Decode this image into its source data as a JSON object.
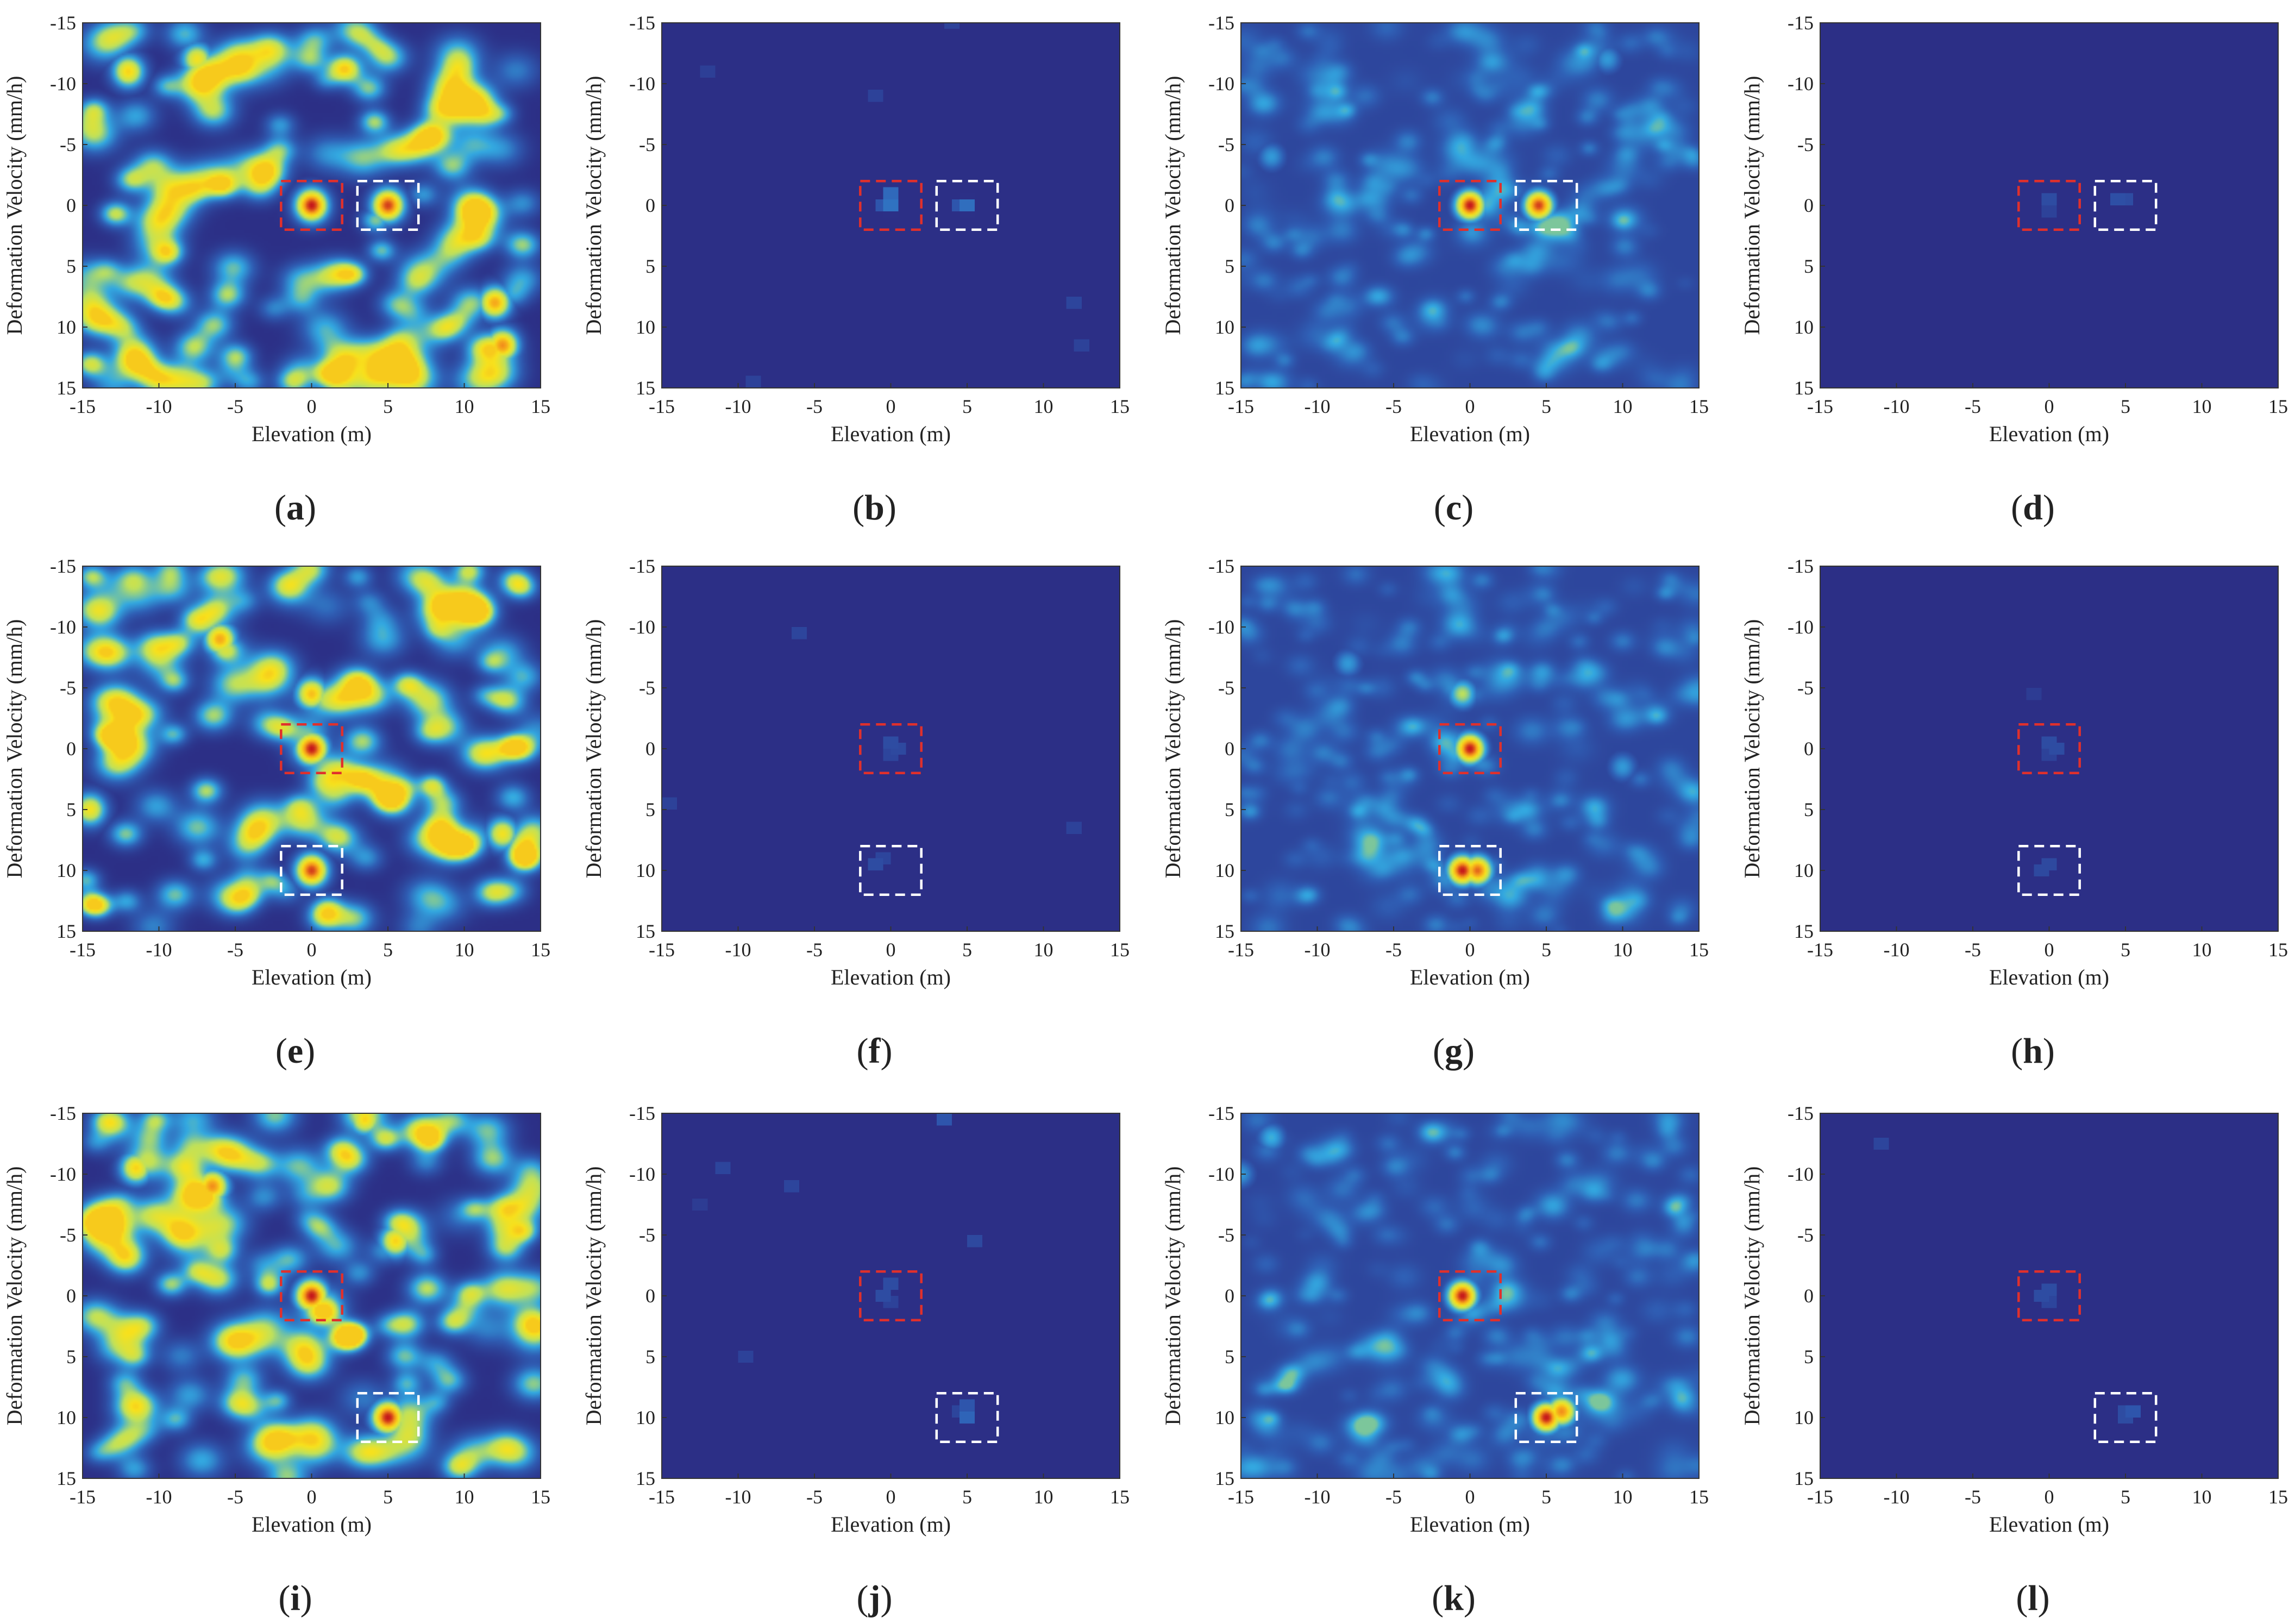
{
  "colors": {
    "background_deep_blue": "#2c2f86",
    "red_box": "#e0302c",
    "white_box": "#ffffff",
    "colormap": [
      "#2c2f86",
      "#2f5fb5",
      "#33a9e1",
      "#bfe15b",
      "#f8e11c",
      "#f59a1b",
      "#c4141b"
    ]
  },
  "chart_data": [
    {
      "panel": "a",
      "type": "heatmap",
      "style": "dense",
      "xlabel": "Elevation (m)",
      "ylabel": "Deformation Velocity (mm/h)",
      "xlim": [
        -15,
        15
      ],
      "ylim": [
        -15,
        15
      ],
      "y_reversed": true,
      "xticks": [
        -15,
        -10,
        -5,
        0,
        5,
        10,
        15
      ],
      "yticks": [
        -15,
        -10,
        -5,
        0,
        5,
        10,
        15
      ],
      "peaks": [
        {
          "x": 0,
          "y": 0,
          "amp": 1.0
        },
        {
          "x": 5,
          "y": 0,
          "amp": 0.95
        },
        {
          "x": 12,
          "y": 8,
          "amp": 0.8
        },
        {
          "x": 12.5,
          "y": 11.5,
          "amp": 0.85
        },
        {
          "x": -12,
          "y": -11,
          "amp": 0.7
        },
        {
          "x": -7.5,
          "y": -12,
          "amp": 0.65
        }
      ],
      "boxes": [
        {
          "color": "red",
          "x": [
            -2,
            2
          ],
          "y": [
            -2,
            2
          ]
        },
        {
          "color": "white",
          "x": [
            3,
            7
          ],
          "y": [
            -2,
            2
          ]
        }
      ]
    },
    {
      "panel": "b",
      "type": "heatmap",
      "style": "sparse",
      "xlabel": "Elevation (m)",
      "ylabel": "Deformation Velocity (mm/h)",
      "xlim": [
        -15,
        15
      ],
      "ylim": [
        -15,
        15
      ],
      "y_reversed": true,
      "xticks": [
        -15,
        -10,
        -5,
        0,
        5,
        10,
        15
      ],
      "yticks": [
        -15,
        -10,
        -5,
        0,
        5,
        10,
        15
      ],
      "peaks": [
        {
          "x": 0,
          "y": 0,
          "amp": 0.95
        },
        {
          "x": 0,
          "y": -1,
          "amp": 0.85
        },
        {
          "x": -0.5,
          "y": 0,
          "amp": 0.6
        },
        {
          "x": 5,
          "y": 0,
          "amp": 0.9
        },
        {
          "x": 4.5,
          "y": 0,
          "amp": 0.6
        },
        {
          "x": 4,
          "y": -15,
          "amp": 0.3
        },
        {
          "x": -1,
          "y": -9,
          "amp": 0.3
        },
        {
          "x": -12,
          "y": -11,
          "amp": 0.25
        },
        {
          "x": 12,
          "y": 8,
          "amp": 0.35
        },
        {
          "x": 12.5,
          "y": 11.5,
          "amp": 0.3
        },
        {
          "x": -9,
          "y": 14.5,
          "amp": 0.3
        }
      ],
      "boxes": [
        {
          "color": "red",
          "x": [
            -2,
            2
          ],
          "y": [
            -2,
            2
          ]
        },
        {
          "color": "white",
          "x": [
            3,
            7
          ],
          "y": [
            -2,
            2
          ]
        }
      ]
    },
    {
      "panel": "c",
      "type": "heatmap",
      "style": "smooth",
      "xlabel": "Elevation (m)",
      "ylabel": "Deformation Velocity (mm/h)",
      "xlim": [
        -15,
        15
      ],
      "ylim": [
        -15,
        15
      ],
      "y_reversed": true,
      "xticks": [
        -15,
        -10,
        -5,
        0,
        5,
        10,
        15
      ],
      "yticks": [
        -15,
        -10,
        -5,
        0,
        5,
        10,
        15
      ],
      "peaks": [
        {
          "x": 0,
          "y": 0,
          "amp": 1.0
        },
        {
          "x": 4.5,
          "y": 0,
          "amp": 0.95
        },
        {
          "x": -13,
          "y": -4,
          "amp": 0.3
        },
        {
          "x": 9,
          "y": -12,
          "amp": 0.3
        }
      ],
      "boxes": [
        {
          "color": "red",
          "x": [
            -2,
            2
          ],
          "y": [
            -2,
            2
          ]
        },
        {
          "color": "white",
          "x": [
            3,
            7
          ],
          "y": [
            -2,
            2
          ]
        }
      ]
    },
    {
      "panel": "d",
      "type": "heatmap",
      "style": "sparse",
      "xlabel": "Elevation (m)",
      "ylabel": "Deformation Velocity (mm/h)",
      "xlim": [
        -15,
        15
      ],
      "ylim": [
        -15,
        15
      ],
      "y_reversed": true,
      "xticks": [
        -15,
        -10,
        -5,
        0,
        5,
        10,
        15
      ],
      "yticks": [
        -15,
        -10,
        -5,
        0,
        5,
        10,
        15
      ],
      "peaks": [
        {
          "x": 0,
          "y": -0.5,
          "amp": 0.45
        },
        {
          "x": 0,
          "y": 0.5,
          "amp": 0.3
        },
        {
          "x": 4.5,
          "y": -0.5,
          "amp": 0.5
        },
        {
          "x": 5,
          "y": -0.5,
          "amp": 0.45
        }
      ],
      "boxes": [
        {
          "color": "red",
          "x": [
            -2,
            2
          ],
          "y": [
            -2,
            2
          ]
        },
        {
          "color": "white",
          "x": [
            3,
            7
          ],
          "y": [
            -2,
            2
          ]
        }
      ]
    },
    {
      "panel": "e",
      "type": "heatmap",
      "style": "dense",
      "xlabel": "Elevation (m)",
      "ylabel": "Deformation Velocity (mm/h)",
      "xlim": [
        -15,
        15
      ],
      "ylim": [
        -15,
        15
      ],
      "y_reversed": true,
      "xticks": [
        -15,
        -10,
        -5,
        0,
        5,
        10,
        15
      ],
      "yticks": [
        -15,
        -10,
        -5,
        0,
        5,
        10,
        15
      ],
      "peaks": [
        {
          "x": 0,
          "y": 0,
          "amp": 1.0
        },
        {
          "x": 0,
          "y": 10,
          "amp": 0.95
        },
        {
          "x": -6,
          "y": -9,
          "amp": 0.8
        },
        {
          "x": 0,
          "y": -4.5,
          "amp": 0.75
        },
        {
          "x": -14.5,
          "y": 5,
          "amp": 0.65
        },
        {
          "x": 12.5,
          "y": 7,
          "amp": 0.65
        }
      ],
      "boxes": [
        {
          "color": "red",
          "x": [
            -2,
            2
          ],
          "y": [
            -2,
            2
          ]
        },
        {
          "color": "white",
          "x": [
            -2,
            2
          ],
          "y": [
            8,
            12
          ]
        }
      ]
    },
    {
      "panel": "f",
      "type": "heatmap",
      "style": "sparse",
      "xlabel": "Elevation (m)",
      "ylabel": "Deformation Velocity (mm/h)",
      "xlim": [
        -15,
        15
      ],
      "ylim": [
        -15,
        15
      ],
      "y_reversed": true,
      "xticks": [
        -15,
        -10,
        -5,
        0,
        5,
        10,
        15
      ],
      "yticks": [
        -15,
        -10,
        -5,
        0,
        5,
        10,
        15
      ],
      "peaks": [
        {
          "x": 0,
          "y": -0.5,
          "amp": 0.45
        },
        {
          "x": 0.5,
          "y": 0,
          "amp": 0.4
        },
        {
          "x": 0,
          "y": 0.5,
          "amp": 0.35
        },
        {
          "x": -1,
          "y": 9.5,
          "amp": 0.45
        },
        {
          "x": -0.5,
          "y": 9,
          "amp": 0.35
        },
        {
          "x": -6,
          "y": -9.5,
          "amp": 0.35
        },
        {
          "x": -14.5,
          "y": 4.5,
          "amp": 0.3
        },
        {
          "x": 12,
          "y": 6.5,
          "amp": 0.3
        }
      ],
      "boxes": [
        {
          "color": "red",
          "x": [
            -2,
            2
          ],
          "y": [
            -2,
            2
          ]
        },
        {
          "color": "white",
          "x": [
            -2,
            2
          ],
          "y": [
            8,
            12
          ]
        }
      ]
    },
    {
      "panel": "g",
      "type": "heatmap",
      "style": "smooth",
      "xlabel": "Elevation (m)",
      "ylabel": "Deformation Velocity (mm/h)",
      "xlim": [
        -15,
        15
      ],
      "ylim": [
        -15,
        15
      ],
      "y_reversed": true,
      "xticks": [
        -15,
        -10,
        -5,
        0,
        5,
        10,
        15
      ],
      "yticks": [
        -15,
        -10,
        -5,
        0,
        5,
        10,
        15
      ],
      "peaks": [
        {
          "x": 0,
          "y": 0,
          "amp": 1.0
        },
        {
          "x": -0.5,
          "y": 10,
          "amp": 1.0
        },
        {
          "x": 0.5,
          "y": 10,
          "amp": 0.9
        },
        {
          "x": -0.5,
          "y": -4.5,
          "amp": 0.5
        },
        {
          "x": -8,
          "y": -7,
          "amp": 0.3
        },
        {
          "x": 10,
          "y": 1.5,
          "amp": 0.3
        }
      ],
      "boxes": [
        {
          "color": "red",
          "x": [
            -2,
            2
          ],
          "y": [
            -2,
            2
          ]
        },
        {
          "color": "white",
          "x": [
            -2,
            2
          ],
          "y": [
            8,
            12
          ]
        }
      ]
    },
    {
      "panel": "h",
      "type": "heatmap",
      "style": "sparse",
      "xlabel": "Elevation (m)",
      "ylabel": "Deformation Velocity (mm/h)",
      "xlim": [
        -15,
        15
      ],
      "ylim": [
        -15,
        15
      ],
      "y_reversed": true,
      "xticks": [
        -15,
        -10,
        -5,
        0,
        5,
        10,
        15
      ],
      "yticks": [
        -15,
        -10,
        -5,
        0,
        5,
        10,
        15
      ],
      "peaks": [
        {
          "x": 0,
          "y": -0.5,
          "amp": 0.45
        },
        {
          "x": 0.5,
          "y": 0,
          "amp": 0.45
        },
        {
          "x": 0,
          "y": 0.5,
          "amp": 0.3
        },
        {
          "x": 0,
          "y": 9.5,
          "amp": 0.4
        },
        {
          "x": -0.5,
          "y": 10,
          "amp": 0.4
        },
        {
          "x": -1,
          "y": -4.5,
          "amp": 0.2
        }
      ],
      "boxes": [
        {
          "color": "red",
          "x": [
            -2,
            2
          ],
          "y": [
            -2,
            2
          ]
        },
        {
          "color": "white",
          "x": [
            -2,
            2
          ],
          "y": [
            8,
            12
          ]
        }
      ]
    },
    {
      "panel": "i",
      "type": "heatmap",
      "style": "dense",
      "xlabel": "Elevation (m)",
      "ylabel": "Deformation Velocity (mm/h)",
      "xlim": [
        -15,
        15
      ],
      "ylim": [
        -15,
        15
      ],
      "y_reversed": true,
      "xticks": [
        -15,
        -10,
        -5,
        0,
        5,
        10,
        15
      ],
      "yticks": [
        -15,
        -10,
        -5,
        0,
        5,
        10,
        15
      ],
      "peaks": [
        {
          "x": 0,
          "y": 0,
          "amp": 1.0
        },
        {
          "x": 5,
          "y": 10,
          "amp": 1.0
        },
        {
          "x": -6.5,
          "y": -9,
          "amp": 0.85
        },
        {
          "x": -11.5,
          "y": -10.5,
          "amp": 0.7
        },
        {
          "x": 5.5,
          "y": -4.5,
          "amp": 0.7
        },
        {
          "x": 3.5,
          "y": -14.5,
          "amp": 0.7
        }
      ],
      "boxes": [
        {
          "color": "red",
          "x": [
            -2,
            2
          ],
          "y": [
            -2,
            2
          ]
        },
        {
          "color": "white",
          "x": [
            3,
            7
          ],
          "y": [
            8,
            12
          ]
        }
      ]
    },
    {
      "panel": "j",
      "type": "heatmap",
      "style": "sparse",
      "xlabel": "Elevation (m)",
      "ylabel": "Deformation Velocity (mm/h)",
      "xlim": [
        -15,
        15
      ],
      "ylim": [
        -15,
        15
      ],
      "y_reversed": true,
      "xticks": [
        -15,
        -10,
        -5,
        0,
        5,
        10,
        15
      ],
      "yticks": [
        -15,
        -10,
        -5,
        0,
        5,
        10,
        15
      ],
      "peaks": [
        {
          "x": 0,
          "y": -1,
          "amp": 0.45
        },
        {
          "x": -0.5,
          "y": 0,
          "amp": 0.45
        },
        {
          "x": 0,
          "y": 0.5,
          "amp": 0.3
        },
        {
          "x": 5,
          "y": 9,
          "amp": 0.6
        },
        {
          "x": 5,
          "y": 10,
          "amp": 0.8
        },
        {
          "x": 4.5,
          "y": 9.5,
          "amp": 0.35
        },
        {
          "x": 3.5,
          "y": -14.5,
          "amp": 0.6
        },
        {
          "x": -11,
          "y": -10.5,
          "amp": 0.35
        },
        {
          "x": -6.5,
          "y": -9,
          "amp": 0.35
        },
        {
          "x": 5.5,
          "y": -4.5,
          "amp": 0.4
        },
        {
          "x": -9.5,
          "y": 5,
          "amp": 0.3
        },
        {
          "x": -12.5,
          "y": -7.5,
          "amp": 0.2
        }
      ],
      "boxes": [
        {
          "color": "red",
          "x": [
            -2,
            2
          ],
          "y": [
            -2,
            2
          ]
        },
        {
          "color": "white",
          "x": [
            3,
            7
          ],
          "y": [
            8,
            12
          ]
        }
      ]
    },
    {
      "panel": "k",
      "type": "heatmap",
      "style": "smooth",
      "xlabel": "Elevation (m)",
      "ylabel": "Deformation Velocity (mm/h)",
      "xlim": [
        -15,
        15
      ],
      "ylim": [
        -15,
        15
      ],
      "y_reversed": true,
      "xticks": [
        -15,
        -10,
        -5,
        0,
        5,
        10,
        15
      ],
      "yticks": [
        -15,
        -10,
        -5,
        0,
        5,
        10,
        15
      ],
      "peaks": [
        {
          "x": -0.5,
          "y": 0,
          "amp": 1.0
        },
        {
          "x": 5,
          "y": 10,
          "amp": 1.0
        },
        {
          "x": 6,
          "y": 9.5,
          "amp": 0.85
        },
        {
          "x": -13,
          "y": -13,
          "amp": 0.35
        },
        {
          "x": -15,
          "y": -10,
          "amp": 0.3
        }
      ],
      "boxes": [
        {
          "color": "red",
          "x": [
            -2,
            2
          ],
          "y": [
            -2,
            2
          ]
        },
        {
          "color": "white",
          "x": [
            3,
            7
          ],
          "y": [
            8,
            12
          ]
        }
      ]
    },
    {
      "panel": "l",
      "type": "heatmap",
      "style": "sparse",
      "xlabel": "Elevation (m)",
      "ylabel": "Deformation Velocity (mm/h)",
      "xlim": [
        -15,
        15
      ],
      "ylim": [
        -15,
        15
      ],
      "y_reversed": true,
      "xticks": [
        -15,
        -10,
        -5,
        0,
        5,
        10,
        15
      ],
      "yticks": [
        -15,
        -10,
        -5,
        0,
        5,
        10,
        15
      ],
      "peaks": [
        {
          "x": 0,
          "y": -0.5,
          "amp": 0.45
        },
        {
          "x": -0.5,
          "y": 0,
          "amp": 0.45
        },
        {
          "x": 0,
          "y": 0.5,
          "amp": 0.35
        },
        {
          "x": 5,
          "y": 9.5,
          "amp": 0.45
        },
        {
          "x": 5.5,
          "y": 9.5,
          "amp": 0.6
        },
        {
          "x": 5,
          "y": 10,
          "amp": 0.45
        },
        {
          "x": -11,
          "y": -12.5,
          "amp": 0.35
        }
      ],
      "boxes": [
        {
          "color": "red",
          "x": [
            -2,
            2
          ],
          "y": [
            -2,
            2
          ]
        },
        {
          "color": "white",
          "x": [
            3,
            7
          ],
          "y": [
            8,
            12
          ]
        }
      ]
    }
  ]
}
